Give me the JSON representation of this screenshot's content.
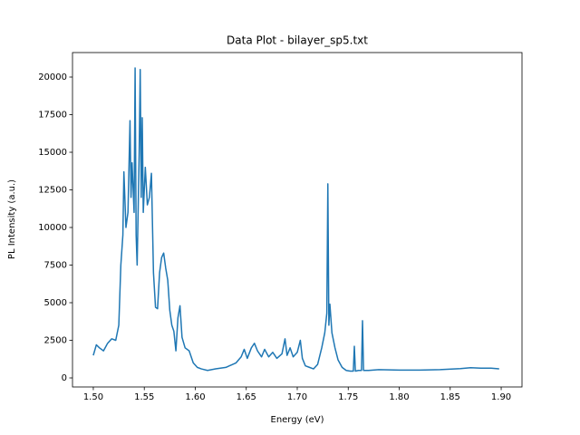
{
  "chart_data": {
    "type": "line",
    "title": "Data Plot - bilayer_sp5.txt",
    "x_label": "Energy (eV)",
    "y_label": "PL Intensity (a.u.)",
    "xlim": [
      1.4796,
      1.9204
    ],
    "ylim": [
      -602,
      21627
    ],
    "xticks": [
      {
        "value": 1.5,
        "label": "1.50"
      },
      1.55,
      {
        "value": 1.6,
        "label": "1.60"
      },
      1.65,
      {
        "value": 1.7,
        "label": "1.70"
      },
      1.75,
      {
        "value": 1.8,
        "label": "1.80"
      },
      1.85,
      {
        "value": 1.9,
        "label": "1.90"
      }
    ],
    "yticks": [
      0,
      2500,
      5000,
      7500,
      10000,
      12500,
      15000,
      17500,
      20000
    ],
    "grid": false,
    "series": [
      {
        "color": "#1f77b4",
        "x": [
          1.5,
          1.503,
          1.506,
          1.51,
          1.514,
          1.518,
          1.522,
          1.525,
          1.527,
          1.529,
          1.53,
          1.532,
          1.534,
          1.536,
          1.537,
          1.538,
          1.54,
          1.541,
          1.542,
          1.543,
          1.545,
          1.546,
          1.547,
          1.548,
          1.549,
          1.551,
          1.553,
          1.555,
          1.557,
          1.559,
          1.561,
          1.563,
          1.565,
          1.567,
          1.569,
          1.571,
          1.573,
          1.575,
          1.577,
          1.579,
          1.581,
          1.583,
          1.585,
          1.587,
          1.59,
          1.594,
          1.598,
          1.602,
          1.606,
          1.612,
          1.62,
          1.63,
          1.64,
          1.645,
          1.648,
          1.651,
          1.655,
          1.658,
          1.661,
          1.665,
          1.668,
          1.672,
          1.676,
          1.68,
          1.685,
          1.688,
          1.69,
          1.693,
          1.696,
          1.7,
          1.703,
          1.705,
          1.708,
          1.712,
          1.716,
          1.72,
          1.724,
          1.727,
          1.729,
          1.73,
          1.731,
          1.732,
          1.734,
          1.737,
          1.74,
          1.744,
          1.748,
          1.752,
          1.755,
          1.756,
          1.757,
          1.76,
          1.763,
          1.764,
          1.765,
          1.77,
          1.78,
          1.8,
          1.82,
          1.84,
          1.86,
          1.87,
          1.88,
          1.89,
          1.898
        ],
        "values": [
          1500,
          2200,
          2000,
          1800,
          2300,
          2600,
          2500,
          3500,
          7500,
          9500,
          13700,
          10000,
          11000,
          17100,
          12000,
          14300,
          11000,
          20600,
          9500,
          7500,
          15000,
          20500,
          12000,
          17300,
          11000,
          14000,
          11500,
          12000,
          13600,
          7000,
          4700,
          4600,
          7000,
          8000,
          8300,
          7300,
          6500,
          4500,
          3500,
          3100,
          1800,
          4000,
          4800,
          2700,
          2000,
          1800,
          1000,
          700,
          600,
          500,
          600,
          700,
          1000,
          1400,
          1900,
          1300,
          2000,
          2300,
          1800,
          1400,
          1900,
          1400,
          1700,
          1300,
          1600,
          2600,
          1500,
          2000,
          1400,
          1700,
          2500,
          1300,
          800,
          700,
          600,
          900,
          2000,
          3000,
          4300,
          12900,
          3500,
          4900,
          3000,
          2000,
          1200,
          700,
          500,
          450,
          450,
          2100,
          450,
          500,
          500,
          3800,
          500,
          500,
          550,
          520,
          520,
          550,
          620,
          680,
          650,
          650,
          600
        ]
      }
    ]
  }
}
